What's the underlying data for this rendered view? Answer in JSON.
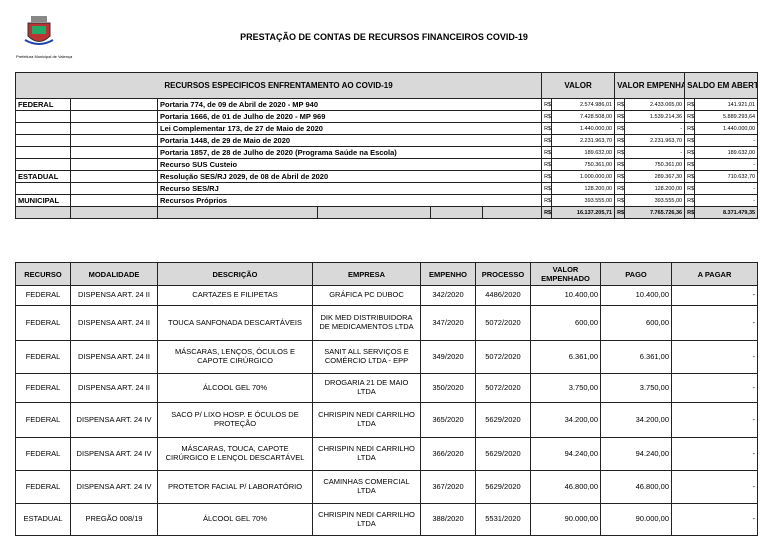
{
  "header": {
    "title": "PRESTAÇÃO DE CONTAS DE RECURSOS FINANCEIROS COVID-19",
    "org": "Prefeitura Municipal de Valença"
  },
  "resources": {
    "headers": [
      "RECURSOS ESPECIFICOS ENFRENTAMENTO AO COVID-19",
      "VALOR",
      "VALOR EMPENHADO",
      "SALDO EM ABERTO"
    ],
    "currency": "R$",
    "rows": [
      {
        "esfera": "FEDERAL",
        "desc": "Portaria 774, de 09 de Abril de 2020 - MP 940",
        "valor": "2.574.986,01",
        "empenhado": "2.433.065,00",
        "saldo": "141.921,01"
      },
      {
        "esfera": "",
        "desc": "Portaria 1666, de 01 de Julho de 2020 - MP 969",
        "valor": "7.428.508,00",
        "empenhado": "1.539.214,36",
        "saldo": "5.889.293,64"
      },
      {
        "esfera": "",
        "desc": "Lei Complementar 173, de 27 de Maio de 2020",
        "valor": "1.440.000,00",
        "empenhado": "-",
        "saldo": "1.440.000,00"
      },
      {
        "esfera": "",
        "desc": "Portaria 1448, de 29 de Maio de 2020",
        "valor": "2.231.963,70",
        "empenhado": "2.231.963,70",
        "saldo": "-"
      },
      {
        "esfera": "",
        "desc": "Portaria 1857, de 28 de Julho de 2020 (Programa Saúde na Escola)",
        "valor": "189.632,00",
        "empenhado": "-",
        "saldo": "189.632,00"
      },
      {
        "esfera": "",
        "desc": "Recurso SUS Custeio",
        "valor": "750.361,00",
        "empenhado": "750.361,00",
        "saldo": "-"
      },
      {
        "esfera": "ESTADUAL",
        "desc": "Resolução SES/RJ 2029, de 08 de Abril de 2020",
        "valor": "1.000.000,00",
        "empenhado": "289.367,30",
        "saldo": "710.632,70"
      },
      {
        "esfera": "",
        "desc": "Recurso SES/RJ",
        "valor": "128.200,00",
        "empenhado": "128.200,00",
        "saldo": "-"
      },
      {
        "esfera": "MUNICIPAL",
        "desc": "Recursos Próprios",
        "valor": "393.555,00",
        "empenhado": "393.555,00",
        "saldo": "-"
      }
    ],
    "total": {
      "valor": "16.137.205,71",
      "empenhado": "7.765.726,36",
      "saldo": "8.371.479,35"
    }
  },
  "expenses": {
    "headers": [
      "RECURSO",
      "MODALIDADE",
      "DESCRIÇÃO",
      "EMPRESA",
      "EMPENHO",
      "PROCESSO",
      "VALOR EMPENHADO",
      "PAGO",
      "A PAGAR"
    ],
    "rows": [
      [
        "FEDERAL",
        "DISPENSA ART. 24 II",
        "CARTAZES E FILIPETAS",
        "GRÁFICA PC DUBOC",
        "342/2020",
        "4486/2020",
        "10.400,00",
        "10.400,00",
        "-"
      ],
      [
        "FEDERAL",
        "DISPENSA ART. 24 II",
        "TOUCA SANFONADA DESCARTÁVEIS",
        "DIK MED DISTRIBUIDORA DE MEDICAMENTOS LTDA",
        "347/2020",
        "5072/2020",
        "600,00",
        "600,00",
        "-"
      ],
      [
        "FEDERAL",
        "DISPENSA ART. 24 II",
        "MÁSCARAS, LENÇOS, ÓCULOS E CAPOTE CIRÚRGICO",
        "SANIT ALL SERVIÇOS E COMÉRCIO LTDA - EPP",
        "349/2020",
        "5072/2020",
        "6.361,00",
        "6.361,00",
        "-"
      ],
      [
        "FEDERAL",
        "DISPENSA ART. 24 II",
        "ÁLCOOL GEL 70%",
        "DROGARIA 21 DE MAIO LTDA",
        "350/2020",
        "5072/2020",
        "3.750,00",
        "3.750,00",
        "-"
      ],
      [
        "FEDERAL",
        "DISPENSA ART. 24 IV",
        "SACO P/ LIXO HOSP. E ÓCULOS DE PROTEÇÃO",
        "CHRISPIN NEDI CARRILHO LTDA",
        "365/2020",
        "5629/2020",
        "34.200,00",
        "34.200,00",
        "-"
      ],
      [
        "FEDERAL",
        "DISPENSA ART. 24 IV",
        "MÁSCARAS, TOUCA, CAPOTE CIRÚRGICO E LENÇOL DESCARTÁVEL",
        "CHRISPIN NEDI CARRILHO LTDA",
        "366/2020",
        "5629/2020",
        "94.240,00",
        "94.240,00",
        "-"
      ],
      [
        "FEDERAL",
        "DISPENSA ART. 24 IV",
        "PROTETOR FACIAL P/ LABORATÓRIO",
        "CAMINHAS COMERCIAL LTDA",
        "367/2020",
        "5629/2020",
        "46.800,00",
        "46.800,00",
        "-"
      ],
      [
        "ESTADUAL",
        "PREGÃO 008/19",
        "ÁLCOOL GEL 70%",
        "CHRISPIN NEDI CARRILHO LTDA",
        "388/2020",
        "5531/2020",
        "90.000,00",
        "90.000,00",
        "-"
      ]
    ]
  }
}
